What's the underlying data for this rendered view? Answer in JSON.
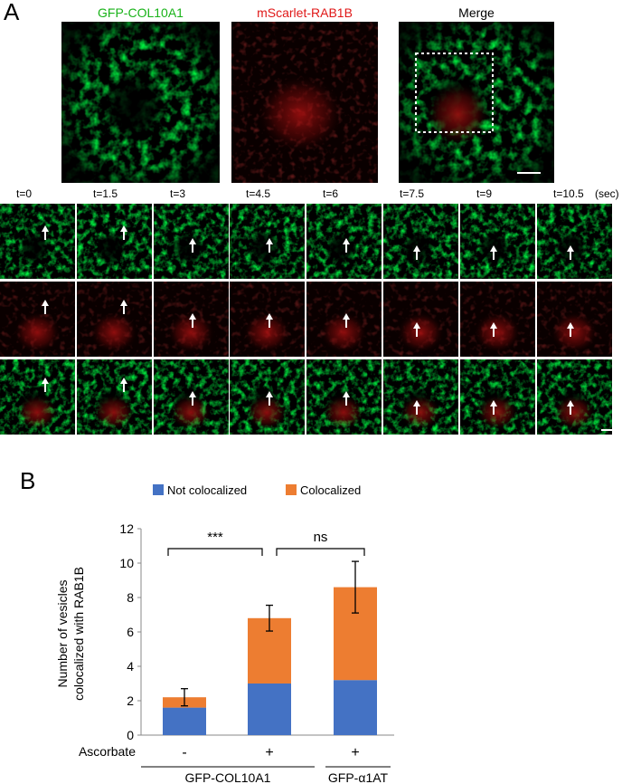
{
  "panel_a": {
    "letter": "A",
    "channels": [
      {
        "label": "GFP-COL10A1",
        "color": "#19b319"
      },
      {
        "label": "mScarlet-RAB1B",
        "color": "#e01818"
      },
      {
        "label": "Merge",
        "color": "#000000"
      }
    ],
    "time_labels": [
      "t=0",
      "t=1.5",
      "t=3",
      "t=4.5",
      "t=6",
      "t=7.5",
      "t=9",
      "t=10.5"
    ],
    "time_unit": "(sec)"
  },
  "panel_b": {
    "letter": "B",
    "chart_data": {
      "type": "bar",
      "stacked": true,
      "categories": [
        "-",
        "+",
        "+"
      ],
      "series": [
        {
          "name": "Not colocalized",
          "color": "#4472c4",
          "values": [
            1.6,
            3.0,
            3.2
          ]
        },
        {
          "name": "Colocalized",
          "color": "#ed7d31",
          "values": [
            0.6,
            3.8,
            5.4
          ]
        }
      ],
      "totals": [
        2.2,
        6.8,
        8.6
      ],
      "error": [
        0.5,
        0.75,
        1.5
      ],
      "ylabel_lines": [
        "Number of vesicles",
        "colocalized with RAB1B"
      ],
      "ylim": [
        0,
        12
      ],
      "yticks": [
        0,
        2,
        4,
        6,
        8,
        10,
        12
      ],
      "grid": false,
      "legend_position": "top",
      "row_label": "Ascorbate",
      "groups": [
        {
          "label": "GFP-COL10A1",
          "bars": [
            0,
            1
          ]
        },
        {
          "label": "GFP-α1AT",
          "bars": [
            2
          ]
        }
      ],
      "significance": [
        {
          "pair": [
            0,
            1
          ],
          "label": "***"
        },
        {
          "pair": [
            1,
            2
          ],
          "label": "ns"
        }
      ]
    }
  }
}
